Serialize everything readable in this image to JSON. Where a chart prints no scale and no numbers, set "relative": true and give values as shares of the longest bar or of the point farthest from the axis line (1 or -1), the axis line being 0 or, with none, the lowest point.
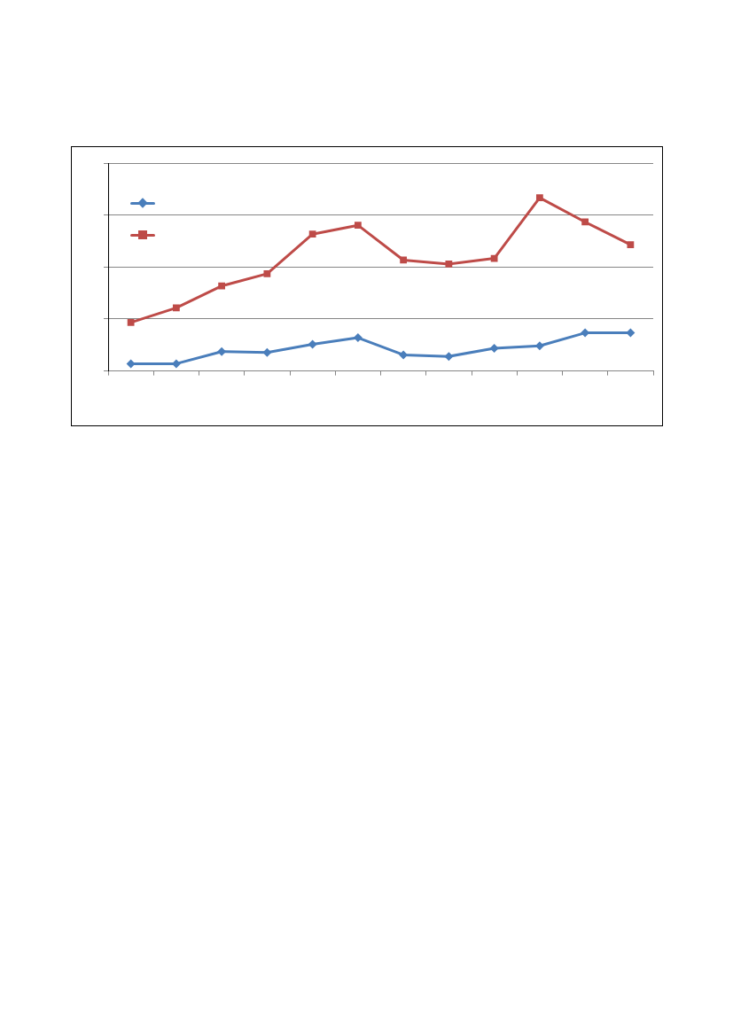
{
  "chart_data": {
    "type": "line",
    "relative": true,
    "categories": [
      null,
      null,
      null,
      null,
      null,
      null,
      null,
      null,
      null,
      null,
      null,
      null
    ],
    "series": [
      {
        "color": "#4a7ebb",
        "marker": "diamond",
        "values": [
          0.042,
          0.042,
          0.112,
          0.107,
          0.154,
          0.192,
          0.093,
          0.084,
          0.131,
          0.145,
          0.22,
          0.22
        ]
      },
      {
        "color": "#be4b48",
        "marker": "square",
        "values": [
          0.28,
          0.364,
          0.491,
          0.561,
          0.79,
          0.841,
          0.64,
          0.617,
          0.65,
          1,
          0.86,
          0.729
        ]
      }
    ],
    "grid": "y",
    "line_style": "solid"
  }
}
